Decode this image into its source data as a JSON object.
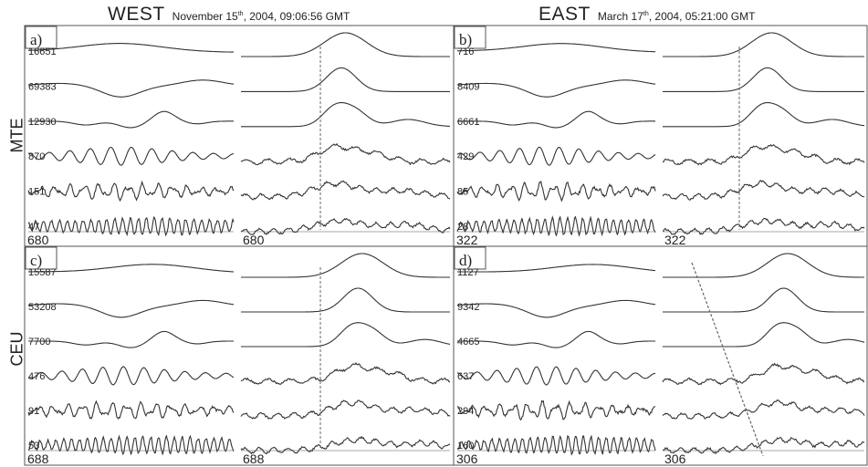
{
  "headers": {
    "west": {
      "title": "WEST",
      "date_pre": "November 15",
      "date_sup": "th",
      "date_post": ", 2004, 09:06:56 GMT"
    },
    "east": {
      "title": "EAST",
      "date_pre": "March 17",
      "date_sup": "th",
      "date_post": ", 2004, 05:21:00 GMT"
    }
  },
  "row_labels": [
    "MTE",
    "CEU"
  ],
  "colors": {
    "trace": "#333333",
    "frame": "#555555",
    "marker": "#666666",
    "text": "#222222"
  },
  "chart_data": [
    {
      "type": "line",
      "panel": "a)",
      "station": "MTE",
      "event": "WEST",
      "footer_left": "680",
      "footer_right": "680",
      "traces": [
        {
          "amp": "16651",
          "kind": "smooth"
        },
        {
          "amp": "69383",
          "kind": "dip"
        },
        {
          "amp": "12930",
          "kind": "wave"
        },
        {
          "amp": "870",
          "kind": "osc"
        },
        {
          "amp": "151",
          "kind": "noisy"
        },
        {
          "amp": "47",
          "kind": "hf"
        }
      ],
      "marker": {
        "type": "vertical"
      }
    },
    {
      "type": "line",
      "panel": "b)",
      "station": "MTE",
      "event": "EAST",
      "footer_left": "322",
      "footer_right": "322",
      "traces": [
        {
          "amp": "716",
          "kind": "smooth"
        },
        {
          "amp": "8409",
          "kind": "dip"
        },
        {
          "amp": "6661",
          "kind": "wave"
        },
        {
          "amp": "429",
          "kind": "osc"
        },
        {
          "amp": "85",
          "kind": "noisy"
        },
        {
          "amp": "28",
          "kind": "hf"
        }
      ],
      "marker": {
        "type": "vertical"
      }
    },
    {
      "type": "line",
      "panel": "c)",
      "station": "CEU",
      "event": "WEST",
      "footer_left": "688",
      "footer_right": "688",
      "traces": [
        {
          "amp": "15587",
          "kind": "smooth"
        },
        {
          "amp": "53208",
          "kind": "dip"
        },
        {
          "amp": "7700",
          "kind": "wave"
        },
        {
          "amp": "476",
          "kind": "osc"
        },
        {
          "amp": "91",
          "kind": "noisy"
        },
        {
          "amp": "53",
          "kind": "hf"
        }
      ],
      "marker": {
        "type": "vertical"
      }
    },
    {
      "type": "line",
      "panel": "d)",
      "station": "CEU",
      "event": "EAST",
      "footer_left": "306",
      "footer_right": "306",
      "traces": [
        {
          "amp": "1127",
          "kind": "smooth"
        },
        {
          "amp": "9342",
          "kind": "dip"
        },
        {
          "amp": "4665",
          "kind": "wave"
        },
        {
          "amp": "637",
          "kind": "osc"
        },
        {
          "amp": "294",
          "kind": "noisy"
        },
        {
          "amp": "160",
          "kind": "hf"
        }
      ],
      "marker": {
        "type": "slanted"
      }
    }
  ]
}
